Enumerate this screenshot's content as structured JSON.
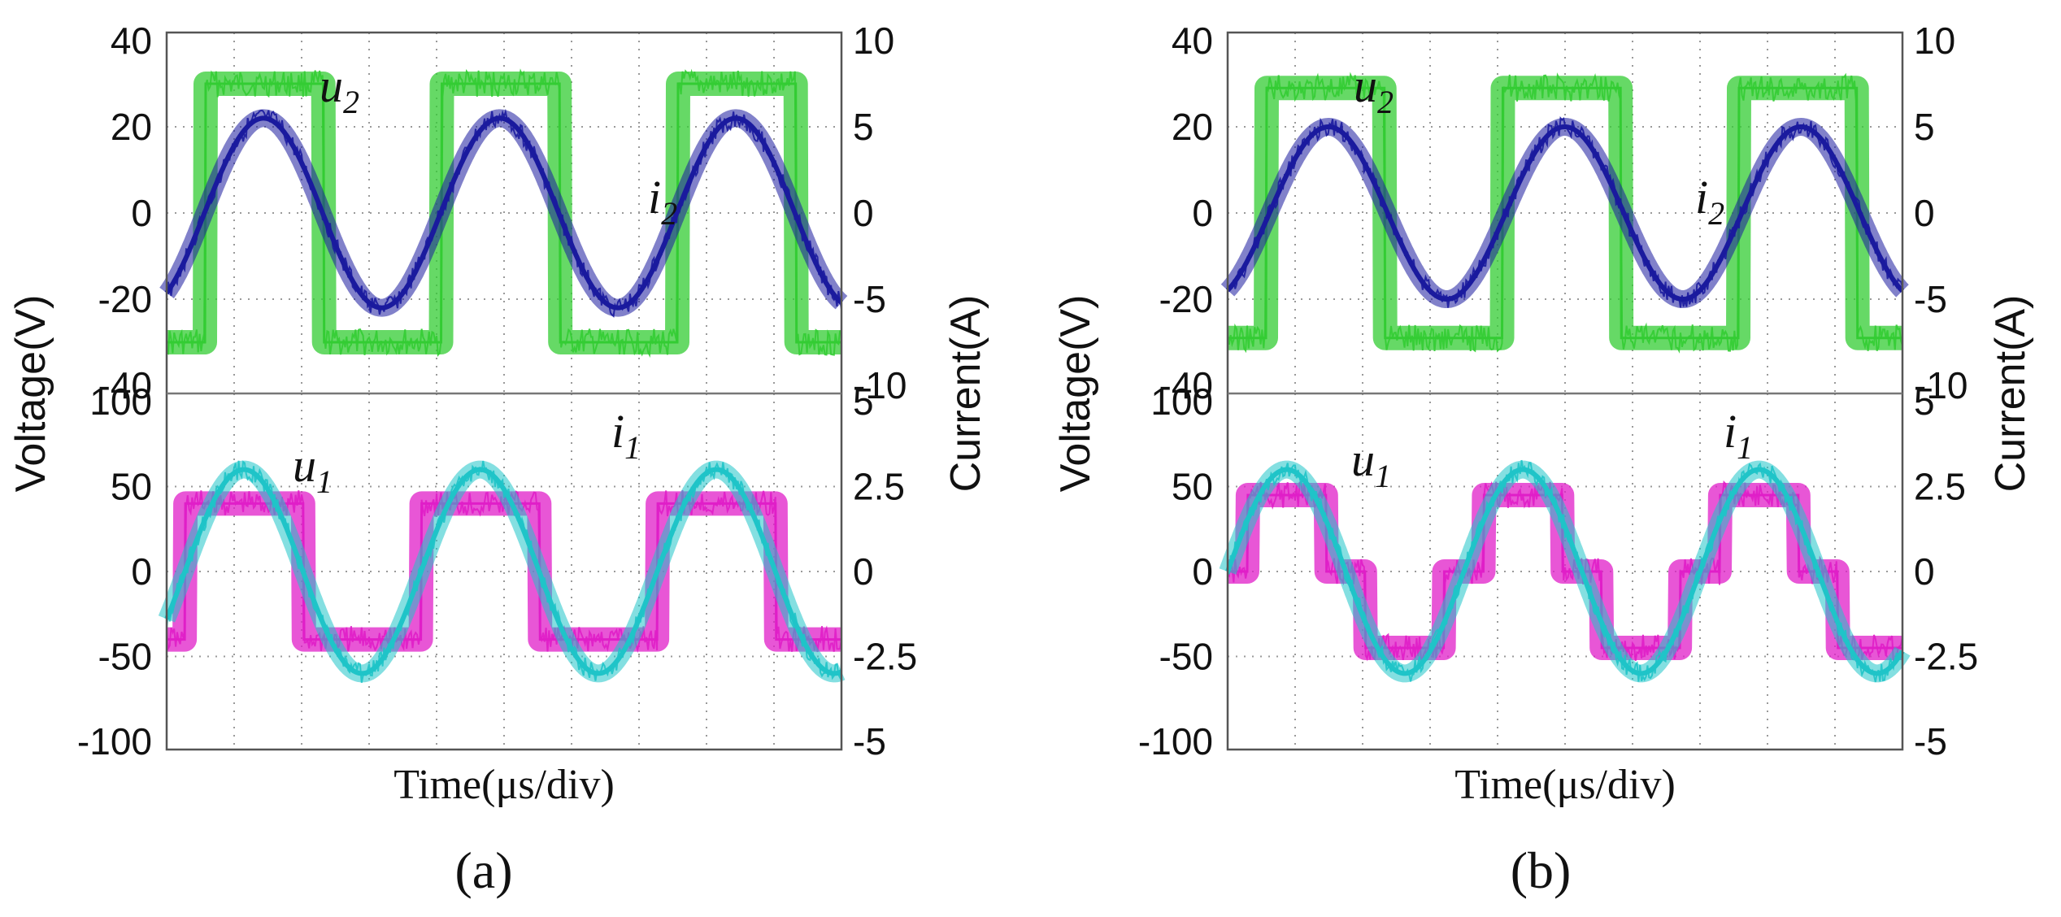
{
  "figure": {
    "panels": [
      {
        "id": "a",
        "label": "(a)",
        "time_label": "Time(μs/div)"
      },
      {
        "id": "b",
        "label": "(b)",
        "time_label": "Time(μs/div)"
      }
    ],
    "voltage_axis_label": "Voltage(V)",
    "current_axis_label": "Current(A)"
  },
  "colors": {
    "u2": "#33cc33",
    "i2": "#1a1a9e",
    "u1": "#e01ec8",
    "i1": "#1fc4c8"
  },
  "chart_data": [
    {
      "type": "line",
      "panel": "a",
      "subplot": "top",
      "xlabel": "Time(μs/div)",
      "ylabel_left": "Voltage(V)",
      "ylabel_right": "Current(A)",
      "ylim_left": [
        -40,
        40
      ],
      "ylim_right": [
        -10,
        10
      ],
      "yticks_left": [
        "40",
        "20",
        "0",
        "-20",
        "-40"
      ],
      "yticks_right": [
        "10",
        "5",
        "0",
        "-5",
        "-10"
      ],
      "x_divisions": 10,
      "series": [
        {
          "name": "u2",
          "label": "u",
          "sub": "2",
          "axis": "left",
          "shape": "square",
          "amplitude": 30,
          "period_div": 3.5,
          "phase_div": 1.45
        },
        {
          "name": "i2",
          "label": "i",
          "sub": "2",
          "axis": "right",
          "shape": "sine",
          "amplitude": 5.5,
          "period_div": 3.5,
          "phase_div": 0.56
        }
      ]
    },
    {
      "type": "line",
      "panel": "a",
      "subplot": "bottom",
      "xlabel": "Time(μs/div)",
      "ylabel_left": "Voltage(V)",
      "ylabel_right": "Current(A)",
      "ylim_left": [
        -100,
        100
      ],
      "ylim_right": [
        -5,
        5
      ],
      "yticks_left": [
        "100",
        "50",
        "0",
        "-50",
        "-100"
      ],
      "yticks_right": [
        "5",
        "2.5",
        "0",
        "-2.5",
        "-5"
      ],
      "x_divisions": 10,
      "series": [
        {
          "name": "u1",
          "label": "u",
          "sub": "1",
          "axis": "left",
          "shape": "square",
          "amplitude": 40,
          "period_div": 3.5,
          "phase_div": 1.15
        },
        {
          "name": "i1",
          "label": "i",
          "sub": "1",
          "axis": "right",
          "shape": "sine",
          "amplitude": 3.0,
          "period_div": 3.5,
          "phase_div": 0.27
        }
      ]
    },
    {
      "type": "line",
      "panel": "b",
      "subplot": "top",
      "xlabel": "Time(μs/div)",
      "ylabel_left": "Voltage(V)",
      "ylabel_right": "Current(A)",
      "ylim_left": [
        -40,
        40
      ],
      "ylim_right": [
        -10,
        10
      ],
      "yticks_left": [
        "40",
        "20",
        "0",
        "-20",
        "-40"
      ],
      "yticks_right": [
        "10",
        "5",
        "0",
        "-5",
        "-10"
      ],
      "x_divisions": 10,
      "series": [
        {
          "name": "u2",
          "label": "u",
          "sub": "2",
          "axis": "left",
          "shape": "square",
          "amplitude": 29,
          "period_div": 3.5,
          "phase_div": 1.45
        },
        {
          "name": "i2",
          "label": "i",
          "sub": "2",
          "axis": "right",
          "shape": "sine",
          "amplitude": 5.0,
          "period_div": 3.5,
          "phase_div": 0.62
        }
      ]
    },
    {
      "type": "line",
      "panel": "b",
      "subplot": "bottom",
      "xlabel": "Time(μs/div)",
      "ylabel_left": "Voltage(V)",
      "ylabel_right": "Current(A)",
      "ylim_left": [
        -100,
        100
      ],
      "ylim_right": [
        -5,
        5
      ],
      "yticks_left": [
        "100",
        "50",
        "0",
        "-50",
        "-100"
      ],
      "yticks_right": [
        "5",
        "2.5",
        "0",
        "-2.5",
        "-5"
      ],
      "x_divisions": 10,
      "series": [
        {
          "name": "u1",
          "label": "u",
          "sub": "1",
          "axis": "left",
          "shape": "stepped",
          "amplitude": 45,
          "step_level": 0,
          "period_div": 3.5,
          "phase_div": 0.0
        },
        {
          "name": "i1",
          "label": "i",
          "sub": "1",
          "axis": "right",
          "shape": "sine",
          "amplitude": 3.0,
          "period_div": 3.5,
          "phase_div": 0.0
        }
      ]
    }
  ]
}
